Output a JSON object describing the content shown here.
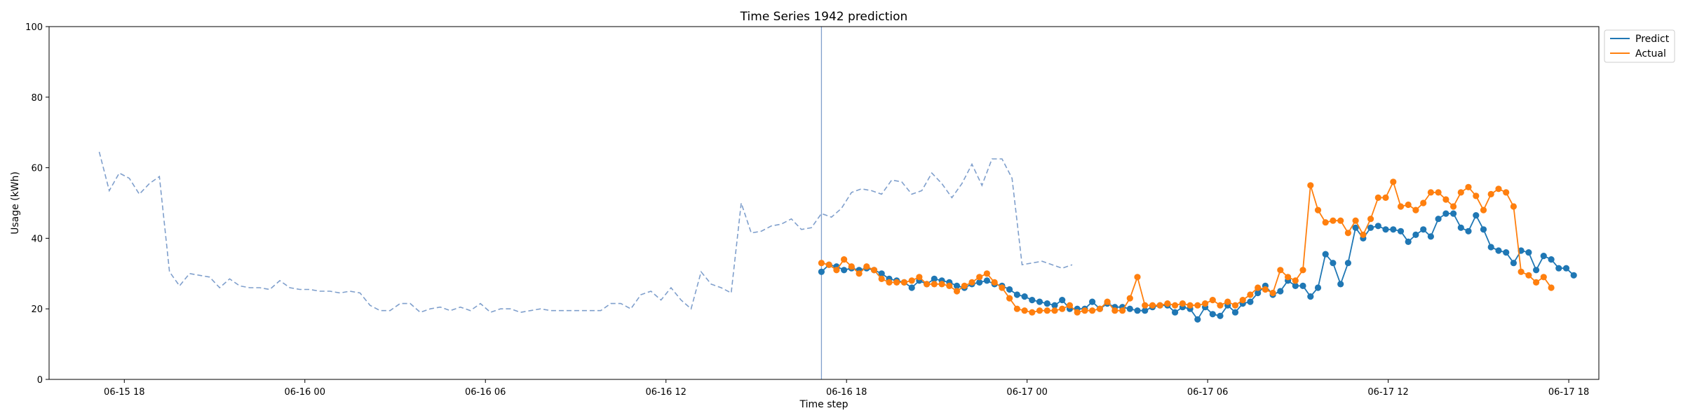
{
  "chart_data": {
    "type": "line",
    "title": "Time Series 1942 prediction",
    "xlabel": "Time step",
    "ylabel": "Usage (kWh)",
    "ylim": [
      0,
      100
    ],
    "yticks": [
      0,
      20,
      40,
      60,
      80,
      100
    ],
    "xlim": [
      "2024-06-15 15:30",
      "2024-06-17 19:00"
    ],
    "xticks": [
      {
        "label": "06-15 18",
        "t": "2024-06-15 18:00"
      },
      {
        "label": "06-16 00",
        "t": "2024-06-16 00:00"
      },
      {
        "label": "06-16 06",
        "t": "2024-06-16 06:00"
      },
      {
        "label": "06-16 12",
        "t": "2024-06-16 12:00"
      },
      {
        "label": "06-16 18",
        "t": "2024-06-16 18:00"
      },
      {
        "label": "06-17 00",
        "t": "2024-06-17 00:00"
      },
      {
        "label": "06-17 06",
        "t": "2024-06-17 06:00"
      },
      {
        "label": "06-17 12",
        "t": "2024-06-17 12:00"
      },
      {
        "label": "06-17 18",
        "t": "2024-06-17 18:00"
      }
    ],
    "grid": false,
    "legend_position": "top-right, outside plot",
    "vline_at": "2024-06-16 17:10",
    "colors": {
      "history": "#7f9fcc",
      "predict": "#1f77b4",
      "actual": "#ff7f0e",
      "vline": "#7f9fcc"
    },
    "history": {
      "start": "2024-06-15 17:10",
      "step_minutes": 20,
      "values": [
        64.5,
        53.5,
        58.5,
        57,
        52.5,
        55.5,
        57.5,
        30.5,
        26.5,
        30,
        29.5,
        29,
        26,
        28.5,
        26.5,
        26,
        26,
        25.5,
        28,
        26,
        25.5,
        25.5,
        25,
        25,
        24.5,
        25,
        24.5,
        21,
        19.5,
        19.5,
        21.5,
        21.5,
        19,
        20,
        20.5,
        19.5,
        20.5,
        19.5,
        21.5,
        19,
        20,
        20,
        19,
        19.5,
        20,
        19.5,
        19.5,
        19.5,
        19.5,
        19.5,
        19.5,
        21.5,
        21.5,
        20,
        24,
        25,
        22.5,
        26,
        22.5,
        20,
        30.5,
        27,
        26,
        24.5,
        50,
        41.5,
        42,
        43.5,
        44,
        45.5,
        42.5,
        43,
        47,
        46,
        48.5,
        53,
        54,
        53.5,
        52.5,
        56.5,
        56,
        52.5,
        53.5,
        58.5,
        55.5,
        51.5,
        55.5,
        61,
        55,
        62.5,
        62.5,
        57,
        32.5,
        33,
        33.5,
        32.5,
        31.5,
        32.5
      ]
    },
    "series": [
      {
        "name": "Predict",
        "start": "2024-06-16 17:10",
        "step_minutes": 15,
        "values": [
          30.5,
          32.5,
          32,
          31,
          31.5,
          31,
          31.5,
          31,
          30,
          28.5,
          28,
          27.5,
          26,
          28,
          27,
          28.5,
          28,
          27.5,
          26.5,
          26,
          27,
          27.5,
          28,
          27,
          26.5,
          25.5,
          24,
          23.5,
          22.5,
          22,
          21.5,
          21,
          22.5,
          20,
          20,
          20,
          22,
          20,
          21.5,
          20.5,
          20.5,
          20,
          19.5,
          19.5,
          20.5,
          21,
          21,
          19,
          20.5,
          20,
          17,
          20.5,
          18.5,
          18,
          21,
          19,
          21.5,
          22,
          24.5,
          26.5,
          24,
          25,
          28,
          26.5,
          26.5,
          23.5,
          26,
          35.5,
          33,
          27,
          33,
          43,
          40,
          43,
          43.5,
          42.5,
          42.5,
          42,
          39,
          41,
          42.5,
          40.5,
          45.5,
          47,
          47,
          43,
          42,
          46.5,
          42.5,
          37.5,
          36.5,
          36,
          33,
          36.5,
          36,
          31,
          35,
          34,
          31.5,
          31.5,
          29.5
        ]
      },
      {
        "name": "Actual",
        "start": "2024-06-16 17:10",
        "step_minutes": 15,
        "values": [
          33,
          32.5,
          31,
          34,
          32,
          30,
          32,
          31,
          28.5,
          27.5,
          27.5,
          27.5,
          28,
          29,
          27,
          27,
          27,
          26.5,
          25,
          26.5,
          27.5,
          29,
          30,
          27.5,
          26,
          23,
          20,
          19.5,
          19,
          19.5,
          19.5,
          19.5,
          20,
          21,
          19,
          19.5,
          19.5,
          20,
          22,
          19.5,
          19.5,
          23,
          29,
          21,
          21,
          21,
          21.5,
          21,
          21.5,
          21,
          21,
          21.5,
          22.5,
          21,
          22,
          21,
          22.5,
          24,
          26,
          25.5,
          24.5,
          31,
          29,
          28,
          31,
          55,
          48,
          44.5,
          45,
          45,
          41.5,
          45,
          41,
          45.5,
          51.5,
          51.5,
          56,
          49,
          49.5,
          48,
          50,
          53,
          53,
          51,
          49,
          53,
          54.5,
          52,
          48,
          52.5,
          54,
          53,
          49,
          30.5,
          29.5,
          27.5,
          29,
          26
        ]
      }
    ]
  }
}
